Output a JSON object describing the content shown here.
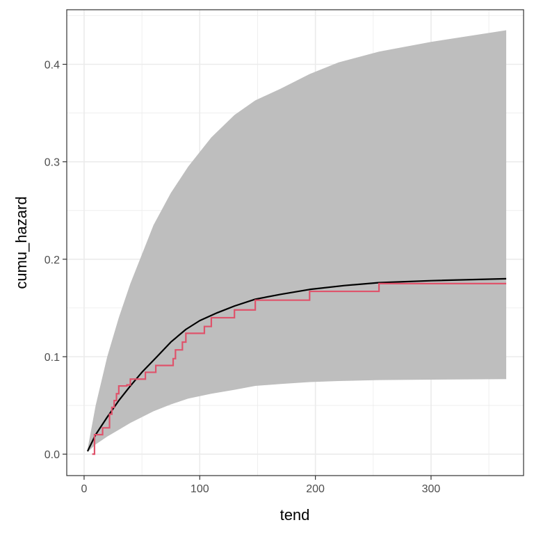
{
  "chart_data": {
    "type": "line",
    "title": "",
    "xlabel": "tend",
    "ylabel": "cumu_hazard",
    "xlim": [
      -15,
      380
    ],
    "ylim": [
      -0.022,
      0.456
    ],
    "x_ticks": [
      0,
      100,
      200,
      300
    ],
    "x_tick_labels": [
      "0",
      "100",
      "200",
      "300"
    ],
    "y_ticks": [
      0.0,
      0.1,
      0.2,
      0.3,
      0.4
    ],
    "y_tick_labels": [
      "0.0",
      "0.1",
      "0.2",
      "0.3",
      "0.4"
    ],
    "grid": true,
    "colors": {
      "band": "#bebebe",
      "smooth_line": "#000000",
      "step_line": "#df536b",
      "grid": "#ebebeb",
      "panel_border": "#333333"
    },
    "confidence_band": {
      "x": [
        3,
        10,
        20,
        30,
        40,
        50,
        60,
        75,
        90,
        110,
        130,
        148,
        170,
        195,
        220,
        255,
        300,
        365
      ],
      "lower": [
        0.002,
        0.01,
        0.018,
        0.025,
        0.032,
        0.038,
        0.044,
        0.051,
        0.057,
        0.062,
        0.066,
        0.07,
        0.072,
        0.074,
        0.075,
        0.076,
        0.0765,
        0.077
      ],
      "upper": [
        0.005,
        0.05,
        0.1,
        0.14,
        0.175,
        0.205,
        0.235,
        0.268,
        0.295,
        0.325,
        0.348,
        0.363,
        0.375,
        0.39,
        0.402,
        0.413,
        0.423,
        0.435
      ]
    },
    "series": [
      {
        "style": "smooth",
        "x": [
          3,
          10,
          20,
          30,
          40,
          50,
          63,
          75,
          88,
          100,
          115,
          130,
          148,
          170,
          195,
          225,
          255,
          300,
          365
        ],
        "y": [
          0.003,
          0.02,
          0.038,
          0.055,
          0.07,
          0.084,
          0.1,
          0.115,
          0.128,
          0.137,
          0.145,
          0.152,
          0.159,
          0.164,
          0.169,
          0.173,
          0.176,
          0.178,
          0.18
        ]
      },
      {
        "style": "step",
        "x": [
          7,
          9,
          16,
          22,
          24,
          26,
          28,
          30,
          37,
          40,
          53,
          62,
          77,
          79,
          85,
          88,
          104,
          110,
          130,
          148,
          195,
          255,
          365
        ],
        "y": [
          0.0,
          0.02,
          0.027,
          0.041,
          0.048,
          0.055,
          0.062,
          0.07,
          0.071,
          0.077,
          0.084,
          0.091,
          0.098,
          0.107,
          0.115,
          0.124,
          0.131,
          0.14,
          0.148,
          0.158,
          0.167,
          0.175,
          0.175
        ]
      }
    ]
  }
}
